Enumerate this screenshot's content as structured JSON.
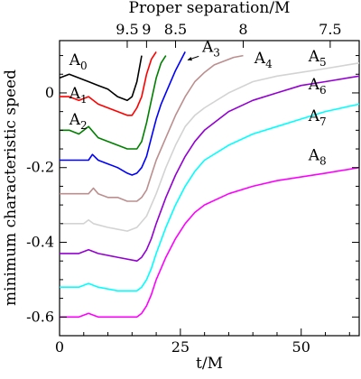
{
  "chart_data": {
    "type": "line",
    "xlabel": "t/M",
    "ylabel": "minimum characteristic speed",
    "top_axis_label": "Proper separation/M",
    "xlim": [
      0,
      62
    ],
    "ylim": [
      -0.65,
      0.14
    ],
    "x_ticks": [
      0,
      25,
      50
    ],
    "x_minor_step": 5,
    "y_ticks": [
      -0.6,
      -0.4,
      -0.2,
      0
    ],
    "y_minor_step": 0.05,
    "top_ticks": [
      {
        "label": "9.5",
        "t": 14
      },
      {
        "label": "9",
        "t": 18
      },
      {
        "label": "8.5",
        "t": 24
      },
      {
        "label": "8",
        "t": 38
      },
      {
        "label": "7.5",
        "t": 56
      }
    ],
    "grid": false,
    "legend": "inline-labels",
    "series": [
      {
        "name": "A",
        "sub": "0",
        "color": "#000000",
        "x": [
          0,
          2,
          4,
          6,
          8,
          10,
          12,
          14,
          15,
          16,
          17
        ],
        "y": [
          0.04,
          0.05,
          0.04,
          0.03,
          0.02,
          0.01,
          -0.01,
          -0.02,
          -0.01,
          0.03,
          0.1
        ],
        "label_x": 2.0,
        "label_y": 0.075
      },
      {
        "name": "A",
        "sub": "1",
        "color": "#ff0000",
        "x": [
          0,
          2,
          4,
          6,
          8,
          10,
          12,
          14,
          15,
          16,
          17,
          18,
          19,
          20
        ],
        "y": [
          -0.01,
          -0.01,
          -0.02,
          -0.01,
          -0.03,
          -0.04,
          -0.05,
          -0.06,
          -0.06,
          -0.04,
          -0.01,
          0.05,
          0.09,
          0.11
        ],
        "label_x": 2.0,
        "label_y": -0.015
      },
      {
        "name": "A",
        "sub": "2",
        "color": "#008000",
        "x": [
          0,
          2,
          4,
          6,
          8,
          10,
          12,
          14,
          16,
          17,
          18,
          19,
          20,
          21,
          22
        ],
        "y": [
          -0.1,
          -0.1,
          -0.11,
          -0.09,
          -0.12,
          -0.13,
          -0.14,
          -0.15,
          -0.15,
          -0.13,
          -0.08,
          -0.02,
          0.04,
          0.08,
          0.1
        ],
        "label_x": 2.0,
        "label_y": -0.085
      },
      {
        "name": "A",
        "sub": "3",
        "color": "#0000ff",
        "x": [
          0,
          2,
          4,
          6,
          6.8,
          8,
          10,
          12,
          14,
          15,
          16,
          17,
          18,
          19,
          20,
          21,
          22,
          24,
          26
        ],
        "y": [
          -0.18,
          -0.18,
          -0.18,
          -0.18,
          -0.165,
          -0.18,
          -0.19,
          -0.2,
          -0.215,
          -0.22,
          -0.215,
          -0.2,
          -0.17,
          -0.12,
          -0.07,
          -0.03,
          0.0,
          0.06,
          0.11
        ],
        "label_x": 29.5,
        "label_y": 0.11,
        "arrow": [
          [
            28.8,
            0.098
          ],
          [
            26.5,
            0.088
          ]
        ]
      },
      {
        "name": "A",
        "sub": "4",
        "color": "#bc8f8f",
        "x": [
          0,
          2,
          4,
          6,
          7,
          8,
          10,
          12,
          14,
          16,
          17,
          18,
          19,
          20,
          22,
          24,
          26,
          28,
          30,
          32,
          34,
          36,
          38
        ],
        "y": [
          -0.27,
          -0.27,
          -0.27,
          -0.27,
          -0.255,
          -0.27,
          -0.28,
          -0.28,
          -0.29,
          -0.29,
          -0.28,
          -0.26,
          -0.22,
          -0.18,
          -0.12,
          -0.06,
          -0.01,
          0.03,
          0.055,
          0.075,
          0.085,
          0.095,
          0.1
        ],
        "label_x": 40.3,
        "label_y": 0.08
      },
      {
        "name": "A",
        "sub": "5",
        "color": "#d3d3d3",
        "x": [
          0,
          5,
          6,
          7,
          10,
          14,
          16,
          18,
          20,
          22,
          24,
          26,
          28,
          30,
          35,
          40,
          45,
          50,
          55,
          62
        ],
        "y": [
          -0.35,
          -0.35,
          -0.34,
          -0.35,
          -0.36,
          -0.37,
          -0.36,
          -0.33,
          -0.27,
          -0.2,
          -0.14,
          -0.09,
          -0.06,
          -0.04,
          0.0,
          0.03,
          0.045,
          0.055,
          0.065,
          0.08
        ],
        "label_x": 51.5,
        "label_y": 0.085
      },
      {
        "name": "A",
        "sub": "6",
        "color": "#9400d3",
        "x": [
          0,
          4,
          6,
          8,
          12,
          16,
          17,
          18,
          19,
          20,
          22,
          24,
          26,
          28,
          30,
          35,
          40,
          45,
          50,
          55,
          62
        ],
        "y": [
          -0.43,
          -0.43,
          -0.42,
          -0.43,
          -0.44,
          -0.45,
          -0.44,
          -0.42,
          -0.39,
          -0.35,
          -0.28,
          -0.22,
          -0.17,
          -0.13,
          -0.1,
          -0.05,
          -0.02,
          0.0,
          0.02,
          0.03,
          0.045
        ],
        "label_x": 51.5,
        "label_y": 0.01
      },
      {
        "name": "A",
        "sub": "7",
        "color": "#00ffff",
        "x": [
          0,
          4,
          6,
          8,
          12,
          16,
          17,
          18,
          19,
          20,
          22,
          24,
          26,
          28,
          30,
          35,
          40,
          45,
          50,
          55,
          62
        ],
        "y": [
          -0.52,
          -0.52,
          -0.51,
          -0.52,
          -0.53,
          -0.53,
          -0.52,
          -0.5,
          -0.47,
          -0.43,
          -0.36,
          -0.3,
          -0.25,
          -0.21,
          -0.18,
          -0.14,
          -0.11,
          -0.09,
          -0.07,
          -0.05,
          -0.03
        ],
        "label_x": 51.5,
        "label_y": -0.075
      },
      {
        "name": "A",
        "sub": "8",
        "color": "#ff00ff",
        "x": [
          0,
          4,
          6,
          8,
          12,
          16,
          17,
          18,
          19,
          20,
          22,
          24,
          26,
          28,
          30,
          35,
          40,
          45,
          50,
          55,
          62
        ],
        "y": [
          -0.6,
          -0.6,
          -0.59,
          -0.6,
          -0.6,
          -0.6,
          -0.59,
          -0.57,
          -0.54,
          -0.5,
          -0.44,
          -0.39,
          -0.35,
          -0.32,
          -0.3,
          -0.27,
          -0.25,
          -0.235,
          -0.225,
          -0.215,
          -0.2
        ],
        "label_x": 51.5,
        "label_y": -0.18
      }
    ]
  }
}
